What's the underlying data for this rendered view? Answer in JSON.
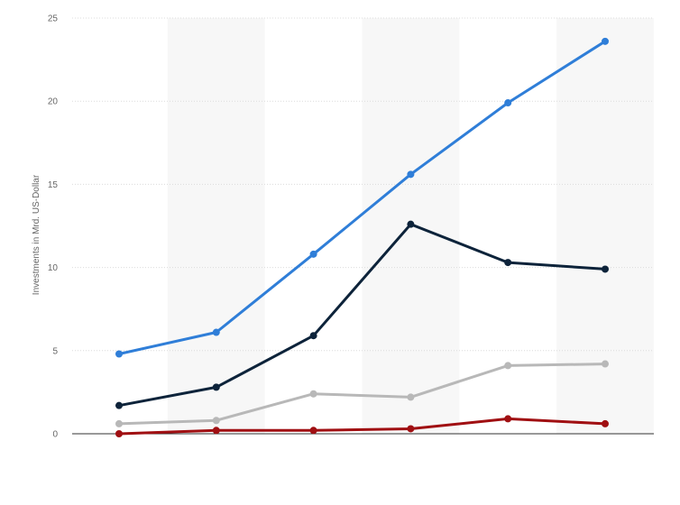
{
  "chart_data": {
    "type": "line",
    "title": "",
    "xlabel": "",
    "ylabel": "Investments in Mrd. US-Dollar",
    "x": [
      1,
      2,
      3,
      4,
      5,
      6
    ],
    "x_tick_labels": [],
    "ylim": [
      0,
      25
    ],
    "yticks": [
      0,
      5,
      10,
      15,
      20,
      25
    ],
    "grid": true,
    "alternating_column_bands": true,
    "legend": "none",
    "series": [
      {
        "color": "#2f7ed8",
        "values": [
          4.8,
          6.1,
          10.8,
          15.6,
          19.9,
          23.6
        ]
      },
      {
        "color": "#0d233a",
        "values": [
          1.7,
          2.8,
          5.9,
          12.6,
          10.3,
          9.9
        ]
      },
      {
        "color": "#b8b8b8",
        "values": [
          0.6,
          0.8,
          2.4,
          2.2,
          4.1,
          4.2
        ]
      },
      {
        "color": "#a00f12",
        "values": [
          0.0,
          0.2,
          0.2,
          0.3,
          0.9,
          0.6
        ]
      }
    ]
  },
  "colors": {
    "background": "#ffffff",
    "band": "#f7f7f7",
    "grid": "#dcdcdc",
    "axis_line": "#333333",
    "text": "#666666"
  }
}
